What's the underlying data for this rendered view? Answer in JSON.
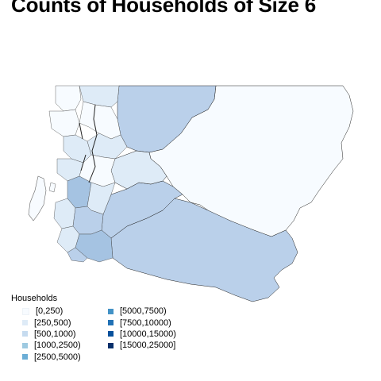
{
  "title": "Counts of Households of Size 6",
  "legend": {
    "title": "Households",
    "items": [
      {
        "label": "[0,250)",
        "color": "#f7fbff"
      },
      {
        "label": "[250,500)",
        "color": "#deebf7"
      },
      {
        "label": "[500,1000)",
        "color": "#c6dbef"
      },
      {
        "label": "[1000,2500)",
        "color": "#9ecae1"
      },
      {
        "label": "[2500,5000)",
        "color": "#6baed6"
      },
      {
        "label": "[5000,7500)",
        "color": "#4292c6"
      },
      {
        "label": "[7500,10000)",
        "color": "#2171b5"
      },
      {
        "label": "[10000,15000)",
        "color": "#08519c"
      },
      {
        "label": "[15000,25000]",
        "color": "#08306b"
      }
    ]
  },
  "map": {
    "region_colors": {
      "lightest": "#f7fbff",
      "light": "#deebf7",
      "mid": "#bad0ea",
      "darker": "#a5c3e2",
      "border": "#000000"
    }
  }
}
